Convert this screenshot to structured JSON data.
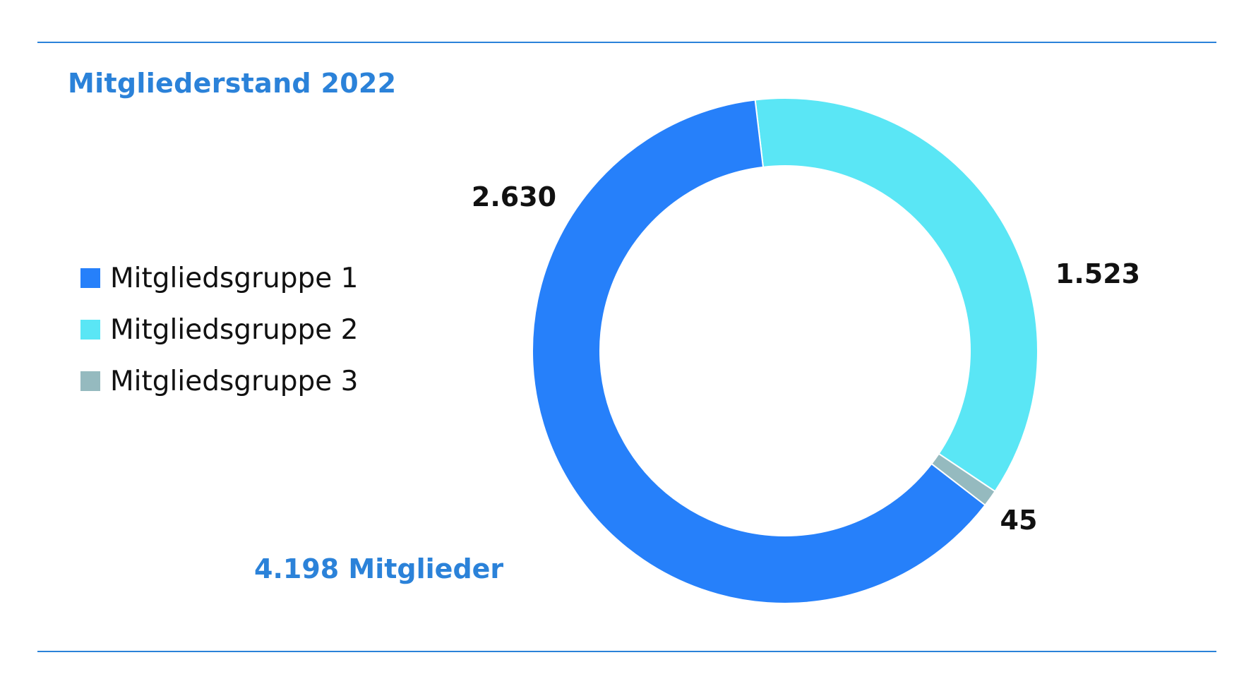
{
  "colors": {
    "accent": "#2b82d9",
    "series": [
      "#2680fa",
      "#5ae6f5",
      "#95babf"
    ]
  },
  "chart_data": {
    "type": "pie",
    "title": "Mitgliederstand 2022",
    "donut": true,
    "categories": [
      "Mitgliedsgruppe 1",
      "Mitgliedsgruppe 2",
      "Mitgliedsgruppe 3"
    ],
    "values": [
      2630,
      1523,
      45
    ],
    "value_labels": [
      "2.630",
      "1.523",
      "45"
    ],
    "total_label": "4.198 Mitglieder",
    "legend": "left"
  }
}
